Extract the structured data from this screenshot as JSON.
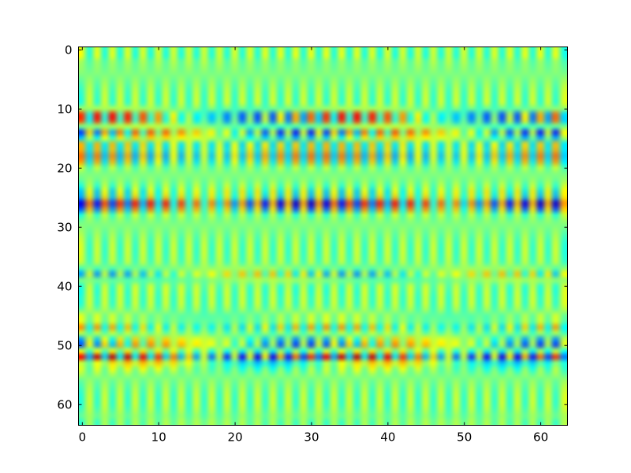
{
  "chart_data": {
    "type": "heatmap",
    "title": "",
    "xlabel": "",
    "ylabel": "",
    "colormap": "jet",
    "rows": 64,
    "cols": 64,
    "x_range": [
      -0.5,
      63.5
    ],
    "y_range": [
      63.5,
      -0.5
    ],
    "value_range": [
      -1,
      1
    ],
    "x_ticks": [
      0,
      10,
      20,
      30,
      40,
      50,
      60
    ],
    "y_ticks": [
      0,
      10,
      20,
      30,
      40,
      50,
      60
    ],
    "x_tick_labels": [
      "0",
      "10",
      "20",
      "30",
      "40",
      "50",
      "60"
    ],
    "y_tick_labels": [
      "0",
      "10",
      "20",
      "30",
      "40",
      "50",
      "60"
    ],
    "column_period": 32,
    "row_bands": [
      {
        "row": 1,
        "amplitude": 0.12,
        "phase": 0.5
      },
      {
        "row": 2,
        "amplitude": -0.1,
        "phase": 0.5
      },
      {
        "row": 11,
        "amplitude": 0.95,
        "phase": -0.9
      },
      {
        "row": 12,
        "amplitude": 0.75,
        "phase": -0.9
      },
      {
        "row": 14,
        "amplitude": -0.9,
        "phase": 0.9
      },
      {
        "row": 15,
        "amplitude": -0.7,
        "phase": 0.9
      },
      {
        "row": 16,
        "amplitude": 0.4,
        "phase": 0.3
      },
      {
        "row": 18,
        "amplitude": 0.3,
        "phase": 0.3
      },
      {
        "row": 19,
        "amplitude": 0.22,
        "phase": 0.3
      },
      {
        "row": 24,
        "amplitude": -0.22,
        "phase": -0.4
      },
      {
        "row": 26,
        "amplitude": -0.75,
        "phase": 0.8
      },
      {
        "row": 27,
        "amplitude": -0.35,
        "phase": 0.8
      },
      {
        "row": 38,
        "amplitude": -0.7,
        "phase": -0.7
      },
      {
        "row": 39,
        "amplitude": 0.35,
        "phase": 0.6
      },
      {
        "row": 40,
        "amplitude": -0.2,
        "phase": 0.6
      },
      {
        "row": 45,
        "amplitude": 0.3,
        "phase": -0.2
      },
      {
        "row": 47,
        "amplitude": 0.45,
        "phase": -0.2
      },
      {
        "row": 49,
        "amplitude": -0.5,
        "phase": 0.8
      },
      {
        "row": 50,
        "amplitude": -0.9,
        "phase": 0.8
      },
      {
        "row": 52,
        "amplitude": 1.0,
        "phase": -0.8
      },
      {
        "row": 53,
        "amplitude": -0.85,
        "phase": 1.2
      },
      {
        "row": 54,
        "amplitude": 0.3,
        "phase": -0.8
      },
      {
        "row": 62,
        "amplitude": 0.1,
        "phase": 0.1
      },
      {
        "row": 63,
        "amplitude": -0.15,
        "phase": 0.1
      }
    ]
  }
}
